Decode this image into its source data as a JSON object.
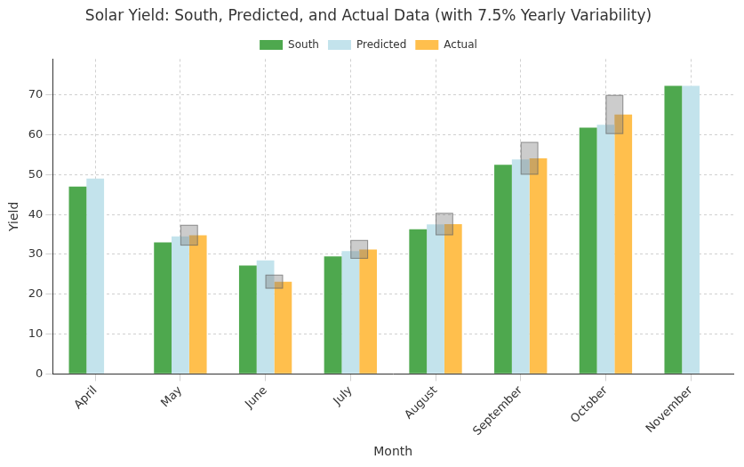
{
  "chart_data": {
    "type": "bar",
    "title": "Solar Yield: South, Predicted, and Actual Data (with 7.5% Yearly Variability)",
    "x_label": "Month",
    "y_label": "Yield",
    "categories": [
      "April",
      "May",
      "June",
      "July",
      "August",
      "September",
      "October",
      "November"
    ],
    "series": [
      {
        "name": "South",
        "color": "#4ea84e",
        "values": [
          47.0,
          33.0,
          27.2,
          29.5,
          36.3,
          52.5,
          61.8,
          72.3
        ]
      },
      {
        "name": "Predicted",
        "color": "#c3e3ec",
        "values": [
          49.0,
          34.5,
          28.5,
          30.8,
          37.5,
          53.8,
          62.5,
          72.3
        ]
      },
      {
        "name": "Actual",
        "color": "#ffbf4d",
        "values": [
          null,
          34.8,
          23.1,
          31.2,
          37.6,
          54.1,
          65.1,
          null
        ],
        "range": [
          null,
          [
            32.2,
            37.4
          ],
          [
            21.4,
            24.9
          ],
          [
            28.9,
            33.6
          ],
          [
            34.8,
            40.4
          ],
          [
            50.0,
            58.2
          ],
          [
            60.2,
            70.0
          ],
          null
        ]
      }
    ],
    "ylim": [
      0,
      79
    ],
    "yticks": [
      0,
      10,
      20,
      30,
      40,
      50,
      60,
      70
    ],
    "grid": true,
    "legend": "upper center"
  }
}
